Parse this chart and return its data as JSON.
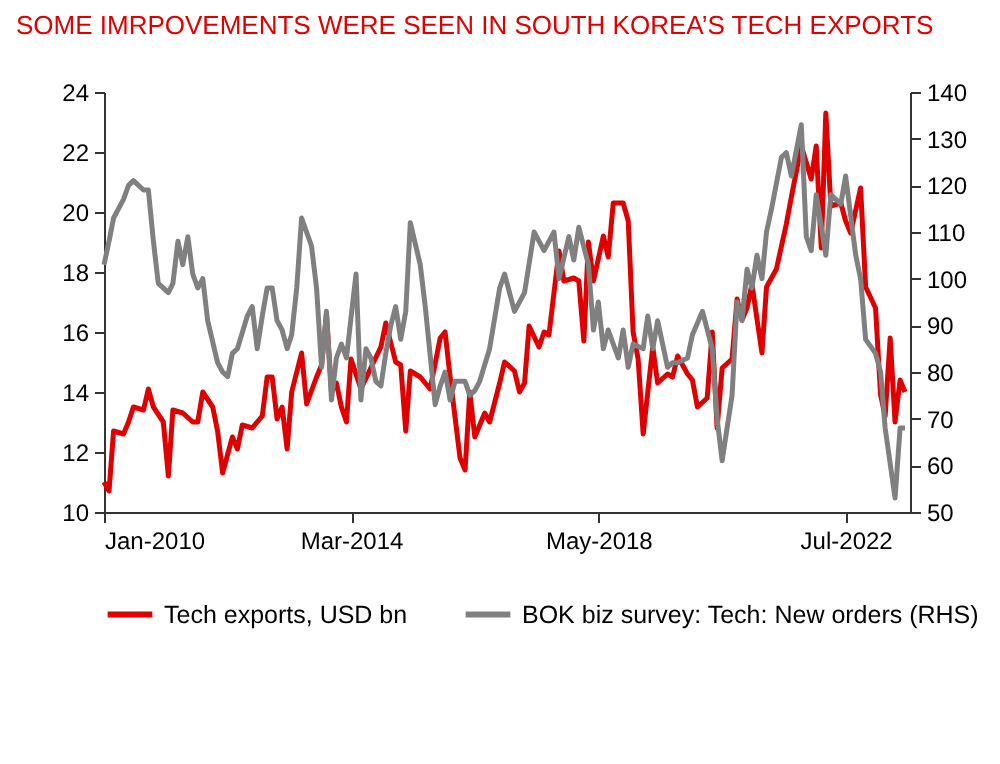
{
  "chart_data": {
    "type": "line",
    "title": "SOME IMRPOVEMENTS WERE SEEN IN SOUTH KOREA’S TECH EXPORTS",
    "legend": "bottom",
    "xlim": [
      "2010-01",
      "2023-08"
    ],
    "xticks": [
      {
        "value": "2010-01",
        "label": "Jan-2010"
      },
      {
        "value": "2014-03",
        "label": "Mar-2014"
      },
      {
        "value": "2018-05",
        "label": "May-2018"
      },
      {
        "value": "2022-07",
        "label": "Jul-2022"
      }
    ],
    "ylim": [
      10,
      24
    ],
    "yticks": [
      10,
      12,
      14,
      16,
      18,
      20,
      22,
      24
    ],
    "y2lim": [
      50,
      140
    ],
    "y2ticks": [
      50,
      60,
      70,
      80,
      90,
      100,
      110,
      120,
      130,
      140
    ],
    "series": [
      {
        "name": "Tech exports, USD bn",
        "color": "#e00000",
        "x": [
          "2010-01",
          "2010-02",
          "2010-03",
          "2010-05",
          "2010-06",
          "2010-07",
          "2010-09",
          "2010-10",
          "2010-11",
          "2011-01",
          "2011-02",
          "2011-03",
          "2011-05",
          "2011-07",
          "2011-08",
          "2011-09",
          "2011-11",
          "2011-12",
          "2012-01",
          "2012-03",
          "2012-04",
          "2012-05",
          "2012-07",
          "2012-09",
          "2012-10",
          "2012-11",
          "2012-12",
          "2013-01",
          "2013-02",
          "2013-03",
          "2013-05",
          "2013-06",
          "2013-08",
          "2013-09",
          "2013-10",
          "2013-11",
          "2013-12",
          "2014-01",
          "2014-02",
          "2014-03",
          "2014-05",
          "2014-07",
          "2014-09",
          "2014-10",
          "2014-12",
          "2015-01",
          "2015-02",
          "2015-03",
          "2015-05",
          "2015-07",
          "2015-09",
          "2015-10",
          "2015-11",
          "2016-01",
          "2016-02",
          "2016-03",
          "2016-04",
          "2016-06",
          "2016-07",
          "2016-09",
          "2016-10",
          "2016-12",
          "2017-01",
          "2017-02",
          "2017-03",
          "2017-05",
          "2017-06",
          "2017-07",
          "2017-09",
          "2017-10",
          "2017-12",
          "2018-01",
          "2018-02",
          "2018-03",
          "2018-04",
          "2018-06",
          "2018-07",
          "2018-08",
          "2018-10",
          "2018-11",
          "2018-12",
          "2019-01",
          "2019-02",
          "2019-04",
          "2019-05",
          "2019-07",
          "2019-08",
          "2019-09",
          "2019-11",
          "2019-12",
          "2020-01",
          "2020-03",
          "2020-04",
          "2020-05",
          "2020-06",
          "2020-08",
          "2020-09",
          "2020-10",
          "2020-11",
          "2020-12",
          "2021-02",
          "2021-03",
          "2021-05",
          "2021-07",
          "2021-08",
          "2021-10",
          "2021-12",
          "2022-01",
          "2022-02",
          "2022-03",
          "2022-04",
          "2022-06",
          "2022-07",
          "2022-08",
          "2022-10",
          "2022-11",
          "2023-01",
          "2023-02",
          "2023-03",
          "2023-04",
          "2023-05",
          "2023-06",
          "2023-07"
        ],
        "values": [
          11.0,
          10.7,
          12.7,
          12.6,
          13.0,
          13.5,
          13.4,
          14.1,
          13.5,
          13.0,
          11.2,
          13.4,
          13.3,
          13.0,
          13.0,
          14.0,
          13.5,
          12.7,
          11.3,
          12.5,
          12.1,
          12.9,
          12.8,
          13.2,
          14.5,
          14.5,
          13.1,
          13.5,
          12.1,
          14.0,
          15.3,
          13.6,
          14.5,
          14.9,
          16.6,
          14.0,
          14.3,
          13.5,
          13.0,
          15.1,
          14.1,
          14.8,
          15.5,
          16.3,
          15.0,
          14.9,
          12.7,
          14.7,
          14.5,
          14.1,
          15.8,
          16.0,
          14.5,
          11.8,
          11.4,
          14.0,
          12.5,
          13.3,
          13.0,
          14.3,
          15.0,
          14.7,
          14.0,
          14.3,
          16.2,
          15.5,
          16.0,
          15.9,
          18.7,
          17.7,
          17.8,
          17.7,
          15.7,
          19.0,
          17.7,
          19.2,
          18.5,
          20.3,
          20.3,
          19.7,
          16.0,
          15.1,
          12.6,
          15.5,
          14.3,
          14.6,
          14.5,
          15.2,
          14.6,
          14.4,
          13.5,
          13.8,
          16.0,
          12.8,
          14.8,
          15.1,
          17.1,
          16.4,
          16.8,
          17.6,
          15.3,
          17.5,
          18.1,
          19.6,
          20.5,
          22.2,
          21.1,
          22.2,
          18.8,
          23.3,
          20.2,
          20.3,
          19.7,
          19.3,
          20.8,
          17.5,
          16.8,
          13.9,
          13.2,
          15.8,
          13.0,
          14.4,
          14.0
        ]
      },
      {
        "name": "BOK biz survey: Tech: New orders (RHS)",
        "color": "#808080",
        "axis": "y2",
        "x": [
          "2010-01",
          "2010-02",
          "2010-03",
          "2010-05",
          "2010-06",
          "2010-07",
          "2010-09",
          "2010-10",
          "2010-11",
          "2010-12",
          "2011-02",
          "2011-03",
          "2011-04",
          "2011-05",
          "2011-06",
          "2011-07",
          "2011-08",
          "2011-09",
          "2011-10",
          "2011-12",
          "2012-01",
          "2012-02",
          "2012-03",
          "2012-04",
          "2012-06",
          "2012-07",
          "2012-08",
          "2012-09",
          "2012-10",
          "2012-11",
          "2012-12",
          "2013-01",
          "2013-02",
          "2013-03",
          "2013-04",
          "2013-05",
          "2013-07",
          "2013-08",
          "2013-09",
          "2013-10",
          "2013-11",
          "2013-12",
          "2014-01",
          "2014-02",
          "2014-04",
          "2014-05",
          "2014-06",
          "2014-07",
          "2014-08",
          "2014-09",
          "2014-10",
          "2014-11",
          "2014-12",
          "2015-01",
          "2015-02",
          "2015-03",
          "2015-05",
          "2015-06",
          "2015-08",
          "2015-09",
          "2015-10",
          "2015-11",
          "2015-12",
          "2016-02",
          "2016-03",
          "2016-04",
          "2016-05",
          "2016-07",
          "2016-09",
          "2016-10",
          "2016-12",
          "2017-02",
          "2017-04",
          "2017-06",
          "2017-08",
          "2017-09",
          "2017-11",
          "2017-12",
          "2018-01",
          "2018-03",
          "2018-04",
          "2018-05",
          "2018-06",
          "2018-07",
          "2018-09",
          "2018-10",
          "2018-11",
          "2018-12",
          "2019-02",
          "2019-03",
          "2019-04",
          "2019-05",
          "2019-07",
          "2019-08",
          "2019-09",
          "2019-11",
          "2019-12",
          "2020-02",
          "2020-04",
          "2020-05",
          "2020-06",
          "2020-08",
          "2020-09",
          "2020-10",
          "2020-11",
          "2020-12",
          "2021-01",
          "2021-02",
          "2021-03",
          "2021-04",
          "2021-06",
          "2021-07",
          "2021-08",
          "2021-10",
          "2021-11",
          "2021-12",
          "2022-01",
          "2022-03",
          "2022-04",
          "2022-06",
          "2022-07",
          "2022-09",
          "2022-10",
          "2022-11",
          "2023-01",
          "2023-02",
          "2023-03",
          "2023-05",
          "2023-06",
          "2023-07"
        ],
        "values": [
          103,
          108,
          113,
          117,
          120,
          121,
          119,
          119,
          108,
          99,
          97,
          99,
          108,
          103,
          109,
          101,
          98,
          100,
          91,
          82,
          80,
          79,
          84,
          85,
          92,
          94,
          85,
          92,
          98,
          98,
          91,
          89,
          85,
          88,
          98,
          113,
          107,
          98,
          81,
          93,
          74,
          83,
          86,
          83,
          101,
          74,
          85,
          83,
          78,
          77,
          84,
          90,
          94,
          87,
          93,
          112,
          103,
          94,
          73,
          77,
          80,
          74,
          78,
          78,
          75,
          76,
          78,
          85,
          98,
          101,
          93,
          97,
          110,
          106,
          110,
          100,
          109,
          104,
          111,
          103,
          89,
          95,
          85,
          89,
          83,
          89,
          81,
          86,
          85,
          92,
          85,
          91,
          81,
          82,
          82,
          83,
          88,
          93,
          85,
          70,
          61,
          75,
          95,
          91,
          102,
          98,
          105,
          100,
          110,
          115,
          126,
          127,
          122,
          133,
          109,
          106,
          118,
          105,
          118,
          116,
          122,
          105,
          100,
          87,
          84,
          80,
          68,
          53,
          68,
          68
        ]
      }
    ]
  }
}
